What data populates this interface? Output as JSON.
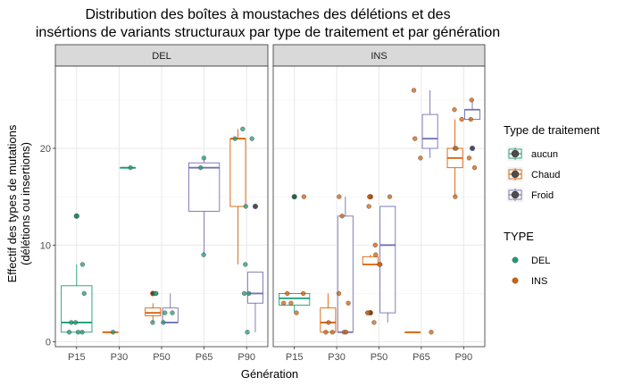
{
  "chart_data": {
    "type": "boxplot",
    "title_lines": [
      "Distribution des boîtes à moustaches des délétions et des",
      "insértions de variants structuraux  par type de traitement et par génération"
    ],
    "xlabel": "Génération",
    "ylabel_lines": [
      "Effectif des types de mutations",
      "(délétions ou insertions)"
    ],
    "categories": [
      "P15",
      "P30",
      "P50",
      "P65",
      "P90"
    ],
    "y_ticks": [
      0,
      10,
      20
    ],
    "ylim": [
      -0.5,
      28.5
    ],
    "grid": true,
    "facets": [
      {
        "label": "DEL",
        "boxes": [
          {
            "category": "P15",
            "treatment": "aucun",
            "min": 1,
            "q1": 1,
            "median": 2,
            "q3": 5.8,
            "max": 8,
            "outliers": [
              13
            ]
          },
          {
            "category": "P30",
            "treatment": "Chaud",
            "min": 1,
            "q1": 1,
            "median": 1,
            "q3": 1,
            "max": 1,
            "outliers": []
          },
          {
            "category": "P30",
            "treatment": "aucun",
            "min": 18,
            "q1": 18,
            "median": 18,
            "q3": 18,
            "max": 18,
            "outliers": []
          },
          {
            "category": "P50",
            "treatment": "Chaud",
            "min": 2,
            "q1": 2.7,
            "median": 3,
            "q3": 3.5,
            "max": 4,
            "outliers": [
              5
            ]
          },
          {
            "category": "P50",
            "treatment": "Froid",
            "min": 2,
            "q1": 2,
            "median": 2,
            "q3": 3.5,
            "max": 5,
            "outliers": []
          },
          {
            "category": "P65",
            "treatment": "Froid",
            "min": 9,
            "q1": 13.5,
            "median": 18,
            "q3": 18.5,
            "max": 19,
            "outliers": []
          },
          {
            "category": "P90",
            "treatment": "Chaud",
            "min": 8,
            "q1": 14,
            "median": 21,
            "q3": 21,
            "max": 22,
            "outliers": []
          },
          {
            "category": "P90",
            "treatment": "Froid",
            "min": 1,
            "q1": 4,
            "median": 5,
            "q3": 7.2,
            "max": 7.2,
            "outliers": [
              14
            ]
          }
        ],
        "points": [
          {
            "category": "P15",
            "type": "DEL",
            "values": [
              1,
              1,
              1,
              2,
              2,
              5,
              8,
              13
            ]
          },
          {
            "category": "P30",
            "type": "DEL",
            "values": [
              1,
              18
            ]
          },
          {
            "category": "P50",
            "type": "DEL",
            "values": [
              2,
              2,
              3,
              3,
              5,
              5
            ]
          },
          {
            "category": "P65",
            "type": "DEL",
            "values": [
              9,
              18,
              19
            ]
          },
          {
            "category": "P90",
            "type": "DEL",
            "values": [
              1,
              5,
              5,
              8,
              14,
              21,
              21,
              22
            ]
          }
        ]
      },
      {
        "label": "INS",
        "boxes": [
          {
            "category": "P15",
            "treatment": "aucun",
            "min": 3,
            "q1": 3.8,
            "median": 4.5,
            "q3": 5,
            "max": 5,
            "outliers": [
              15
            ]
          },
          {
            "category": "P30",
            "treatment": "Chaud",
            "min": 1,
            "q1": 1,
            "median": 2,
            "q3": 3.5,
            "max": 5,
            "outliers": []
          },
          {
            "category": "P30",
            "treatment": "Froid",
            "min": 1,
            "q1": 1,
            "median": 1,
            "q3": 13,
            "max": 15,
            "outliers": []
          },
          {
            "category": "P50",
            "treatment": "Chaud",
            "min": 8,
            "q1": 8,
            "median": 8,
            "q3": 8.8,
            "max": 9,
            "outliers": [
              3,
              15
            ]
          },
          {
            "category": "P50",
            "treatment": "Froid",
            "min": 2,
            "q1": 3,
            "median": 10,
            "q3": 14,
            "max": 14,
            "outliers": []
          },
          {
            "category": "P65",
            "treatment": "Chaud",
            "min": 1,
            "q1": 1,
            "median": 1,
            "q3": 1,
            "max": 1,
            "outliers": []
          },
          {
            "category": "P65",
            "treatment": "Froid",
            "min": 19,
            "q1": 20,
            "median": 21,
            "q3": 23.5,
            "max": 26,
            "outliers": []
          },
          {
            "category": "P90",
            "treatment": "Chaud",
            "min": 15,
            "q1": 18,
            "median": 19,
            "q3": 20,
            "max": 23,
            "outliers": []
          },
          {
            "category": "P90",
            "treatment": "Froid",
            "min": 23,
            "q1": 23,
            "median": 24,
            "q3": 24,
            "max": 25,
            "outliers": [
              20
            ]
          }
        ],
        "points": [
          {
            "category": "P15",
            "type": "INS",
            "values": [
              3,
              4,
              4,
              5,
              5,
              15
            ]
          },
          {
            "category": "P30",
            "type": "INS",
            "values": [
              1,
              1,
              1,
              1,
              2,
              4,
              5,
              13,
              15
            ]
          },
          {
            "category": "P50",
            "type": "INS",
            "values": [
              2,
              3,
              3,
              8,
              8,
              9,
              10,
              14,
              15,
              15
            ]
          },
          {
            "category": "P65",
            "type": "INS",
            "values": [
              1,
              19,
              21,
              26
            ]
          },
          {
            "category": "P90",
            "type": "INS",
            "values": [
              15,
              18,
              19,
              20,
              20,
              23,
              23,
              24,
              25
            ]
          }
        ]
      }
    ],
    "legends": [
      {
        "title": "Type de traitement",
        "kind": "box",
        "items": [
          {
            "label": "aucun",
            "color": "#1b9e77"
          },
          {
            "label": "Chaud",
            "color": "#d95f02"
          },
          {
            "label": "Froid",
            "color": "#7570b3"
          }
        ]
      },
      {
        "title": "TYPE",
        "kind": "point",
        "items": [
          {
            "label": "DEL",
            "color": "#1b9e77"
          },
          {
            "label": "INS",
            "color": "#d95f02"
          }
        ]
      }
    ],
    "colors": {
      "aucun": "#1b9e77",
      "Chaud": "#d95f02",
      "Froid": "#7570b3",
      "DEL": "#1b9e77",
      "INS": "#d95f02"
    }
  }
}
